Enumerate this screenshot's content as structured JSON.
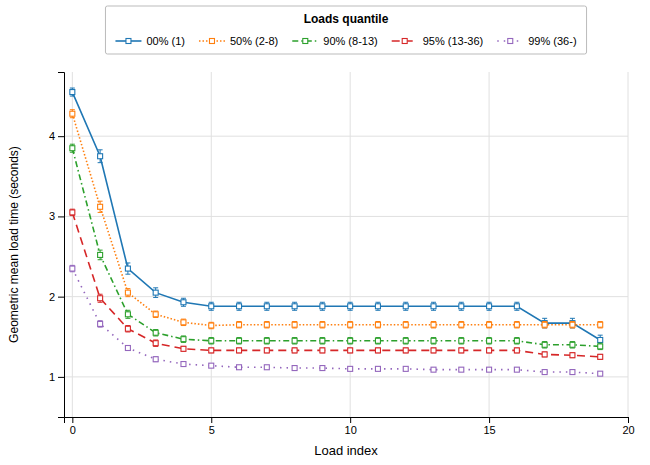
{
  "chart_data": {
    "type": "line",
    "xlabel": "Load index",
    "ylabel": "Geometric mean load time (seconds)",
    "legend_title": "Loads quantile",
    "legend": "top",
    "grid": true,
    "xlim": [
      -0.3,
      20
    ],
    "ylim": [
      0.5,
      4.8
    ],
    "xticks": [
      0,
      5,
      10,
      15,
      20
    ],
    "yticks": [
      1,
      2,
      3,
      4
    ],
    "x": [
      0,
      1,
      2,
      3,
      4,
      5,
      6,
      7,
      8,
      9,
      10,
      11,
      12,
      13,
      14,
      15,
      16,
      17,
      18,
      19
    ],
    "series": [
      {
        "name": "00% (1)",
        "line_style": "solid",
        "marker": "square",
        "values": [
          4.55,
          3.75,
          2.35,
          2.05,
          1.93,
          1.88,
          1.88,
          1.88,
          1.88,
          1.88,
          1.88,
          1.88,
          1.88,
          1.88,
          1.88,
          1.88,
          1.88,
          1.67,
          1.67,
          1.46
        ],
        "errors": [
          0.05,
          0.08,
          0.07,
          0.06,
          0.05,
          0.05,
          0.05,
          0.05,
          0.05,
          0.05,
          0.05,
          0.05,
          0.05,
          0.05,
          0.05,
          0.05,
          0.05,
          0.06,
          0.06,
          0.06
        ]
      },
      {
        "name": "50% (2-8)",
        "line_style": "densely dotted",
        "marker": "square",
        "values": [
          4.28,
          3.12,
          2.05,
          1.78,
          1.68,
          1.64,
          1.65,
          1.65,
          1.65,
          1.65,
          1.65,
          1.65,
          1.65,
          1.65,
          1.65,
          1.65,
          1.65,
          1.65,
          1.65,
          1.65
        ],
        "errors": [
          0.05,
          0.07,
          0.05,
          0.04,
          0.04,
          0.04,
          0.04,
          0.04,
          0.04,
          0.04,
          0.04,
          0.04,
          0.04,
          0.04,
          0.04,
          0.04,
          0.04,
          0.04,
          0.04,
          0.04
        ]
      },
      {
        "name": "90% (8-13)",
        "line_style": "dashed",
        "marker": "square",
        "values": [
          3.85,
          2.52,
          1.78,
          1.55,
          1.47,
          1.45,
          1.45,
          1.45,
          1.45,
          1.45,
          1.45,
          1.45,
          1.45,
          1.45,
          1.45,
          1.45,
          1.45,
          1.4,
          1.4,
          1.38
        ],
        "errors": [
          0.05,
          0.06,
          0.05,
          0.04,
          0.04,
          0.04,
          0.04,
          0.04,
          0.04,
          0.04,
          0.04,
          0.04,
          0.04,
          0.04,
          0.04,
          0.04,
          0.04,
          0.04,
          0.04,
          0.04
        ]
      },
      {
        "name": "95% (13-36)",
        "line_style": "loosely dashed",
        "marker": "square",
        "values": [
          3.05,
          1.98,
          1.6,
          1.42,
          1.35,
          1.33,
          1.33,
          1.33,
          1.33,
          1.33,
          1.33,
          1.33,
          1.33,
          1.33,
          1.33,
          1.33,
          1.33,
          1.28,
          1.27,
          1.25
        ],
        "errors": [
          0.04,
          0.05,
          0.04,
          0.04,
          0.03,
          0.03,
          0.03,
          0.03,
          0.03,
          0.03,
          0.03,
          0.03,
          0.03,
          0.03,
          0.03,
          0.03,
          0.03,
          0.03,
          0.03,
          0.03
        ]
      },
      {
        "name": "99% (36-)",
        "line_style": "loosely dotted",
        "marker": "square",
        "values": [
          2.35,
          1.66,
          1.36,
          1.22,
          1.16,
          1.14,
          1.12,
          1.12,
          1.11,
          1.11,
          1.1,
          1.1,
          1.1,
          1.09,
          1.09,
          1.09,
          1.09,
          1.06,
          1.06,
          1.04
        ],
        "errors": [
          0.04,
          0.04,
          0.03,
          0.03,
          0.03,
          0.02,
          0.02,
          0.02,
          0.02,
          0.02,
          0.02,
          0.02,
          0.02,
          0.02,
          0.02,
          0.02,
          0.02,
          0.02,
          0.02,
          0.02
        ]
      }
    ]
  }
}
